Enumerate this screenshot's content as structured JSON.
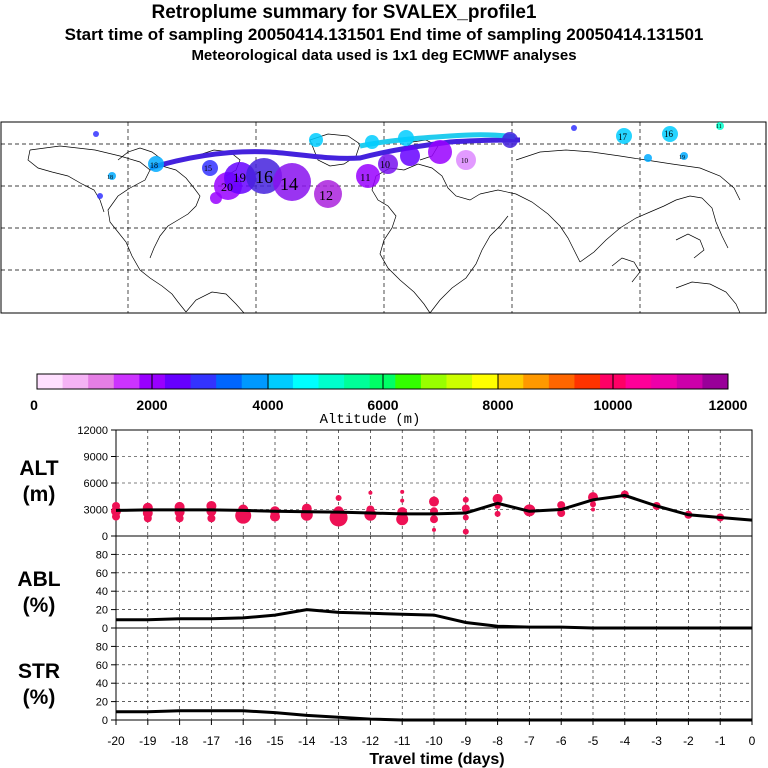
{
  "header": {
    "title": "Retroplume summary for SVALEX_profile1",
    "subtitle": "Start time of sampling 20050414.131501     End time of sampling 20050414.131501",
    "meteo": "Meteorological data used is 1x1 deg ECMWF analyses"
  },
  "colors": {
    "scale": [
      "#ffe0ff",
      "#f5b3f5",
      "#e57ee5",
      "#cc33ff",
      "#9900ff",
      "#6600ff",
      "#3333ff",
      "#0066ff",
      "#0099ff",
      "#00ccff",
      "#00ffff",
      "#00ffcc",
      "#00ff99",
      "#00ff66",
      "#33ff00",
      "#99ff00",
      "#ccff00",
      "#ffff00",
      "#ffcc00",
      "#ff9900",
      "#ff6600",
      "#ff3300",
      "#ff0066",
      "#ff0099",
      "#ee00aa",
      "#cc00aa",
      "#990099"
    ],
    "alt_marker": "#ee1155",
    "line": "#000000",
    "map_track_dark": "#4422dd",
    "map_track_light": "#22ccee"
  },
  "colorbar": {
    "tick_labels": [
      "0",
      "2000",
      "4000",
      "6000",
      "8000",
      "10000",
      "12000"
    ],
    "label": "Altitude (m)"
  },
  "map": {
    "cluster_labels": [
      {
        "text": "20",
        "color": "#9900ff"
      },
      {
        "text": "19",
        "color": "#6600ff"
      },
      {
        "text": "16",
        "color": "#4422dd"
      },
      {
        "text": "14",
        "color": "#8811ee"
      },
      {
        "text": "12",
        "color": "#aa22dd"
      },
      {
        "text": "11",
        "color": "#9900ff"
      },
      {
        "text": "10",
        "color": "#7711ee"
      },
      {
        "text": "17",
        "color": "#00ccff"
      },
      {
        "text": "16",
        "color": "#00ccff"
      },
      {
        "text": "11",
        "color": "#00ffcc"
      },
      {
        "text": "18",
        "color": "#00aaff"
      },
      {
        "text": "19",
        "color": "#00aaff"
      },
      {
        "text": "10",
        "color": "#dd88ff"
      },
      {
        "text": "15",
        "color": "#9900ff"
      },
      {
        "text": "18",
        "color": "#00ccff"
      }
    ]
  },
  "chart_data": [
    {
      "type": "line",
      "panel": "ALT",
      "ylabel": "ALT\n(m)",
      "ylabel_lines": [
        "ALT",
        "(m)"
      ],
      "ylim": [
        0,
        12000
      ],
      "yticks": [
        0,
        3000,
        6000,
        9000,
        12000
      ],
      "ytick_labels": [
        "0",
        "3000",
        "6000",
        "9000",
        "12000"
      ],
      "x": [
        -20,
        -19,
        -18,
        -17,
        -16,
        -15,
        -14,
        -13,
        -12,
        -11,
        -10,
        -9,
        -8,
        -7,
        -6,
        -5,
        -4,
        -3,
        -2,
        -1,
        0
      ],
      "values": [
        2900,
        2950,
        2950,
        2950,
        2900,
        2800,
        2750,
        2700,
        2600,
        2500,
        2500,
        2600,
        3700,
        2800,
        3000,
        4100,
        4600,
        3400,
        2400,
        2100,
        1800
      ],
      "markers": [
        {
          "x": -20,
          "y": 3400,
          "r": 4
        },
        {
          "x": -20,
          "y": 2800,
          "r": 5
        },
        {
          "x": -20,
          "y": 2200,
          "r": 4
        },
        {
          "x": -19,
          "y": 3200,
          "r": 5
        },
        {
          "x": -19,
          "y": 2600,
          "r": 5
        },
        {
          "x": -19,
          "y": 2000,
          "r": 4
        },
        {
          "x": -18,
          "y": 3300,
          "r": 5
        },
        {
          "x": -18,
          "y": 2700,
          "r": 5
        },
        {
          "x": -18,
          "y": 2000,
          "r": 4
        },
        {
          "x": -17,
          "y": 3400,
          "r": 5
        },
        {
          "x": -17,
          "y": 2800,
          "r": 5
        },
        {
          "x": -17,
          "y": 2000,
          "r": 4
        },
        {
          "x": -16,
          "y": 3000,
          "r": 5
        },
        {
          "x": -16,
          "y": 2300,
          "r": 8
        },
        {
          "x": -15,
          "y": 2800,
          "r": 5
        },
        {
          "x": -15,
          "y": 2200,
          "r": 5
        },
        {
          "x": -14,
          "y": 3100,
          "r": 5
        },
        {
          "x": -14,
          "y": 2400,
          "r": 6
        },
        {
          "x": -13,
          "y": 4300,
          "r": 3
        },
        {
          "x": -13,
          "y": 2800,
          "r": 5
        },
        {
          "x": -13,
          "y": 2100,
          "r": 9
        },
        {
          "x": -12,
          "y": 4900,
          "r": 2
        },
        {
          "x": -12,
          "y": 3000,
          "r": 4
        },
        {
          "x": -12,
          "y": 2400,
          "r": 6
        },
        {
          "x": -11,
          "y": 5000,
          "r": 2
        },
        {
          "x": -11,
          "y": 4000,
          "r": 2
        },
        {
          "x": -11,
          "y": 2700,
          "r": 5
        },
        {
          "x": -11,
          "y": 1900,
          "r": 6
        },
        {
          "x": -10,
          "y": 3900,
          "r": 5
        },
        {
          "x": -10,
          "y": 2800,
          "r": 4
        },
        {
          "x": -10,
          "y": 1900,
          "r": 4
        },
        {
          "x": -10,
          "y": 700,
          "r": 2
        },
        {
          "x": -9,
          "y": 4100,
          "r": 3
        },
        {
          "x": -9,
          "y": 3100,
          "r": 4
        },
        {
          "x": -9,
          "y": 2100,
          "r": 3
        },
        {
          "x": -9,
          "y": 500,
          "r": 3
        },
        {
          "x": -8,
          "y": 4200,
          "r": 5
        },
        {
          "x": -8,
          "y": 3400,
          "r": 3
        },
        {
          "x": -8,
          "y": 2500,
          "r": 3
        },
        {
          "x": -7,
          "y": 2900,
          "r": 6
        },
        {
          "x": -6,
          "y": 3500,
          "r": 4
        },
        {
          "x": -6,
          "y": 2600,
          "r": 4
        },
        {
          "x": -5,
          "y": 4400,
          "r": 5
        },
        {
          "x": -5,
          "y": 3600,
          "r": 3
        },
        {
          "x": -5,
          "y": 3000,
          "r": 2
        },
        {
          "x": -4,
          "y": 4700,
          "r": 4
        },
        {
          "x": -3,
          "y": 3400,
          "r": 4
        },
        {
          "x": -2,
          "y": 2400,
          "r": 4
        },
        {
          "x": -1,
          "y": 2100,
          "r": 4
        }
      ]
    },
    {
      "type": "line",
      "panel": "ABL",
      "ylabel_lines": [
        "ABL",
        "(%)"
      ],
      "ylim": [
        0,
        100
      ],
      "yticks": [
        0,
        20,
        40,
        60,
        80,
        100
      ],
      "ytick_labels": [
        "0",
        "20",
        "40",
        "60",
        "80",
        ""
      ],
      "x": [
        -20,
        -19,
        -18,
        -17,
        -16,
        -15,
        -14,
        -13,
        -12,
        -11,
        -10,
        -9,
        -8,
        -7,
        -6,
        -5,
        -4,
        -3,
        -2,
        -1,
        0
      ],
      "values": [
        9,
        9,
        10,
        10,
        11,
        14,
        20,
        17,
        16,
        15,
        14,
        6,
        2,
        1,
        1,
        0,
        0,
        0,
        0,
        0,
        0
      ]
    },
    {
      "type": "line",
      "panel": "STR",
      "ylabel_lines": [
        "STR",
        "(%)"
      ],
      "ylim": [
        0,
        100
      ],
      "yticks": [
        0,
        20,
        40,
        60,
        80,
        100
      ],
      "ytick_labels": [
        "0",
        "20",
        "40",
        "60",
        "80",
        ""
      ],
      "x": [
        -20,
        -19,
        -18,
        -17,
        -16,
        -15,
        -14,
        -13,
        -12,
        -11,
        -10,
        -9,
        -8,
        -7,
        -6,
        -5,
        -4,
        -3,
        -2,
        -1,
        0
      ],
      "values": [
        9,
        9,
        10,
        10,
        10,
        8,
        5,
        3,
        1,
        0,
        0,
        0,
        0,
        0,
        0,
        0,
        0,
        0,
        0,
        0,
        0
      ],
      "xlabel": "Travel time (days)",
      "xtick_labels": [
        "-20",
        "-19",
        "-18",
        "-17",
        "-16",
        "-15",
        "-14",
        "-13",
        "-12",
        "-11",
        "-10",
        "-9",
        "-8",
        "-7",
        "-6",
        "-5",
        "-4",
        "-3",
        "-2",
        "-1",
        "0"
      ]
    }
  ]
}
